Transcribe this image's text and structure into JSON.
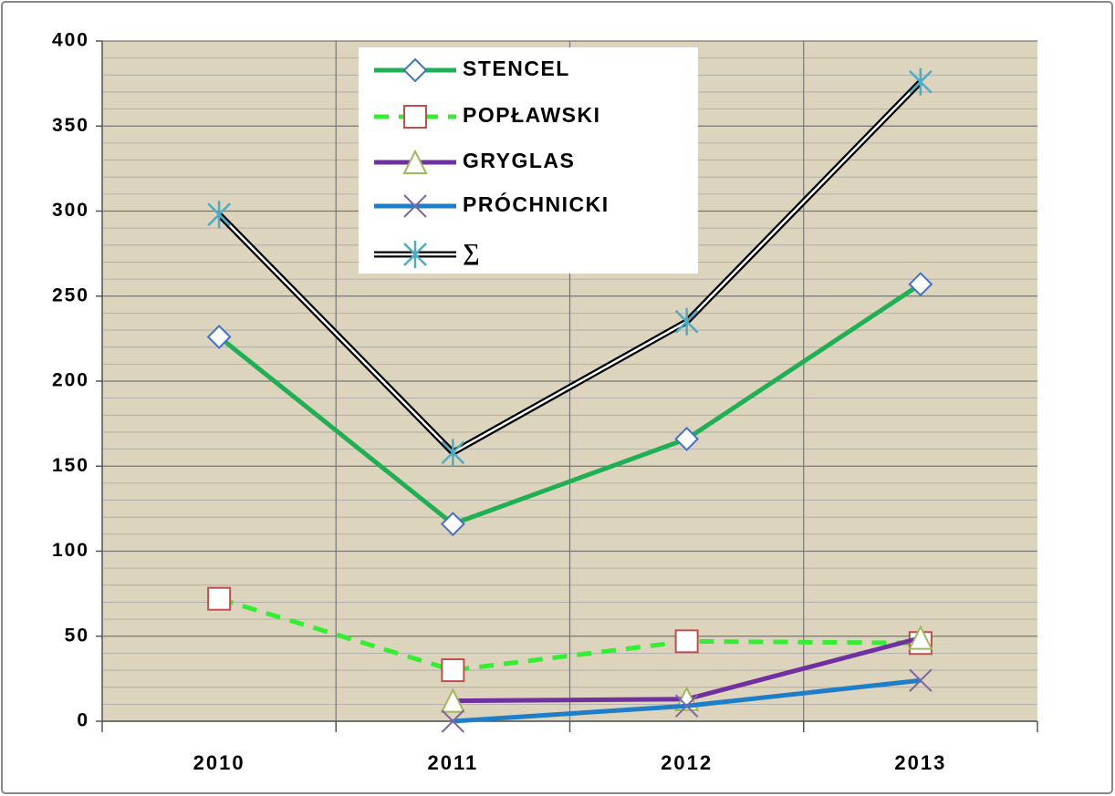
{
  "chart_data": {
    "type": "line",
    "categories": [
      "2010",
      "2011",
      "2012",
      "2013"
    ],
    "series": [
      {
        "name": "STENCEL",
        "color": "#1faf55",
        "marker": "diamond",
        "marker_color": "#4472c4",
        "dash": false,
        "values": [
          226,
          116,
          166,
          257
        ]
      },
      {
        "name": "POPŁAWSKI",
        "color": "#33ee33",
        "marker": "square",
        "marker_color": "#c0504d",
        "dash": true,
        "values": [
          72,
          30,
          47,
          46
        ]
      },
      {
        "name": "GRYGLAS",
        "color": "#7030a0",
        "marker": "triangle",
        "marker_color": "#9bbb59",
        "dash": false,
        "values": [
          null,
          12,
          13,
          49
        ]
      },
      {
        "name": "PRÓCHNICKI",
        "color": "#1f7ec8",
        "marker": "x",
        "marker_color": "#8064a2",
        "dash": false,
        "values": [
          null,
          0,
          9,
          24
        ]
      },
      {
        "name": "∑",
        "color": "#000000",
        "marker": "star",
        "marker_color": "#4bacc6",
        "dash": false,
        "double": true,
        "values": [
          298,
          158,
          235,
          376
        ]
      }
    ],
    "ylim": [
      0,
      400
    ],
    "yticks": [
      0,
      50,
      100,
      150,
      200,
      250,
      300,
      350,
      400
    ],
    "grid": true,
    "minor_grid": 10,
    "legend": "top"
  }
}
